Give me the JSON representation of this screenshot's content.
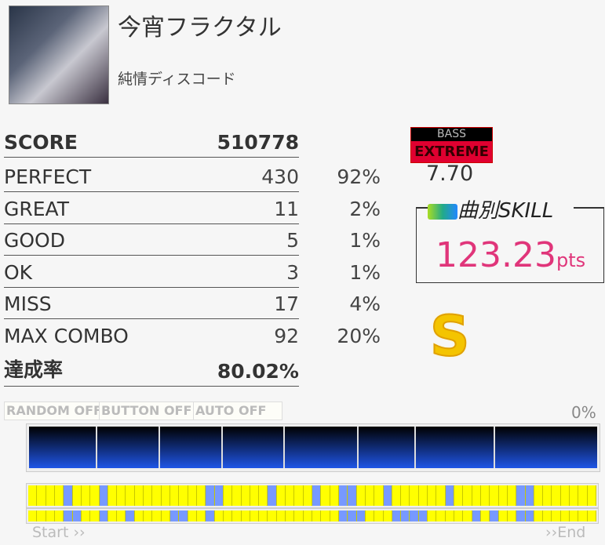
{
  "song": {
    "title": "今宵フラクタル",
    "artist": "純情ディスコード"
  },
  "score": {
    "label": "SCORE",
    "value": "510778"
  },
  "judgements": [
    {
      "label": "PERFECT",
      "count": "430",
      "pct": "92%"
    },
    {
      "label": "GREAT",
      "count": "11",
      "pct": "2%"
    },
    {
      "label": "GOOD",
      "count": "5",
      "pct": "1%"
    },
    {
      "label": "OK",
      "count": "3",
      "pct": "1%"
    },
    {
      "label": "MISS",
      "count": "17",
      "pct": "4%"
    },
    {
      "label": "MAX COMBO",
      "count": "92",
      "pct": "20%"
    }
  ],
  "achievement": {
    "label": "達成率",
    "value": "80.02%"
  },
  "difficulty": {
    "part": "BASS",
    "level_name": "EXTREME",
    "level": "7.70"
  },
  "skill": {
    "header": "曲別SKILL",
    "value": "123.23",
    "unit": "pts"
  },
  "rank": "S",
  "options": [
    "RANDOM OFF",
    "BUTTON OFF",
    "AUTO OFF"
  ],
  "graph_pct": "0%",
  "lanes": {
    "row1": "YYYYBYYYBYYYYYYYYYYYBBYYYYYBYYYYBYYBBYYYBYYYYYYBYYYYYYYBBYYYYYYY",
    "row2": "YYYYBBYYBYYBYYYYBBYYBYYYYYYYYYYYYYYBBBYYYBBBBYYYYYBYBYYBBYYYYYYY"
  },
  "colors": {
    "hit": "#ffff00",
    "miss": "#7799ff",
    "skill": "#e0357a"
  },
  "timeline": {
    "start": "Start ››",
    "end": "››End"
  }
}
